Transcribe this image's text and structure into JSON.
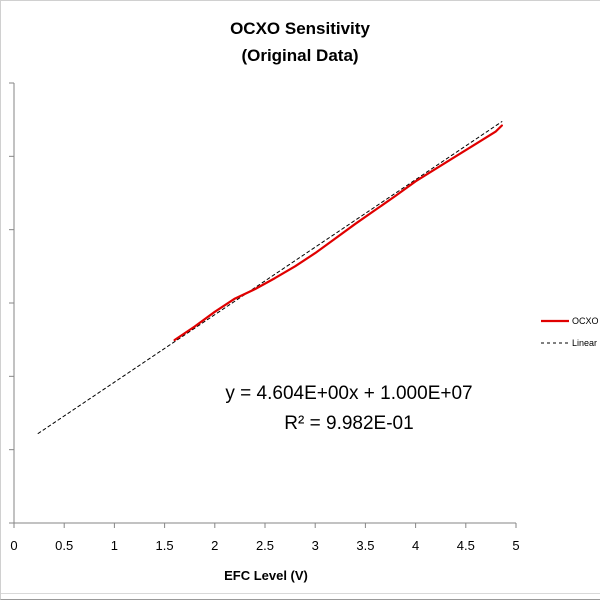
{
  "chart_data": {
    "type": "line",
    "title_line1": "OCXO Sensitivity",
    "title_line2": "(Original Data)",
    "xlabel": "EFC Level (V)",
    "ylabel": "",
    "xlim": [
      0,
      5
    ],
    "ylim": [
      10000000.0,
      10000030.0
    ],
    "xticks": [
      0,
      0.5,
      1,
      1.5,
      2,
      2.5,
      3,
      3.5,
      4,
      4.5,
      5
    ],
    "xtick_labels": [
      "0",
      "0.5",
      "1",
      "1.5",
      "2",
      "2.5",
      "3",
      "3.5",
      "4",
      "4.5",
      "5"
    ],
    "yticks": [
      10000000.0,
      10000005.0,
      10000010.0,
      10000015.0,
      10000020.0,
      10000025.0,
      10000030.0
    ],
    "ytick_labels_visible": false,
    "series": [
      {
        "name": "OCXO",
        "style": "solid",
        "color": "#e00000",
        "x": [
          1.6,
          1.8,
          2.0,
          2.2,
          2.4,
          2.6,
          2.8,
          3.0,
          3.2,
          3.4,
          3.6,
          3.8,
          4.0,
          4.2,
          4.4,
          4.6,
          4.8,
          4.86
        ],
        "y": [
          10000012.48,
          10000013.4,
          10000014.4,
          10000015.3,
          10000015.95,
          10000016.7,
          10000017.5,
          10000018.4,
          10000019.4,
          10000020.4,
          10000021.35,
          10000022.3,
          10000023.3,
          10000024.15,
          10000025.0,
          10000025.85,
          10000026.7,
          10000027.1
        ]
      },
      {
        "name": "Linear",
        "style": "dashed",
        "color": "#000000",
        "x": [
          0.24,
          4.86
        ],
        "y": [
          10000006.1,
          10000027.37
        ]
      }
    ],
    "legend": {
      "position": "right",
      "entries": [
        "OCXO",
        "Linear"
      ]
    },
    "annotation": {
      "line1": "y = 4.604E+00x + 1.000E+07",
      "line2": "R² = 9.982E-01"
    }
  }
}
